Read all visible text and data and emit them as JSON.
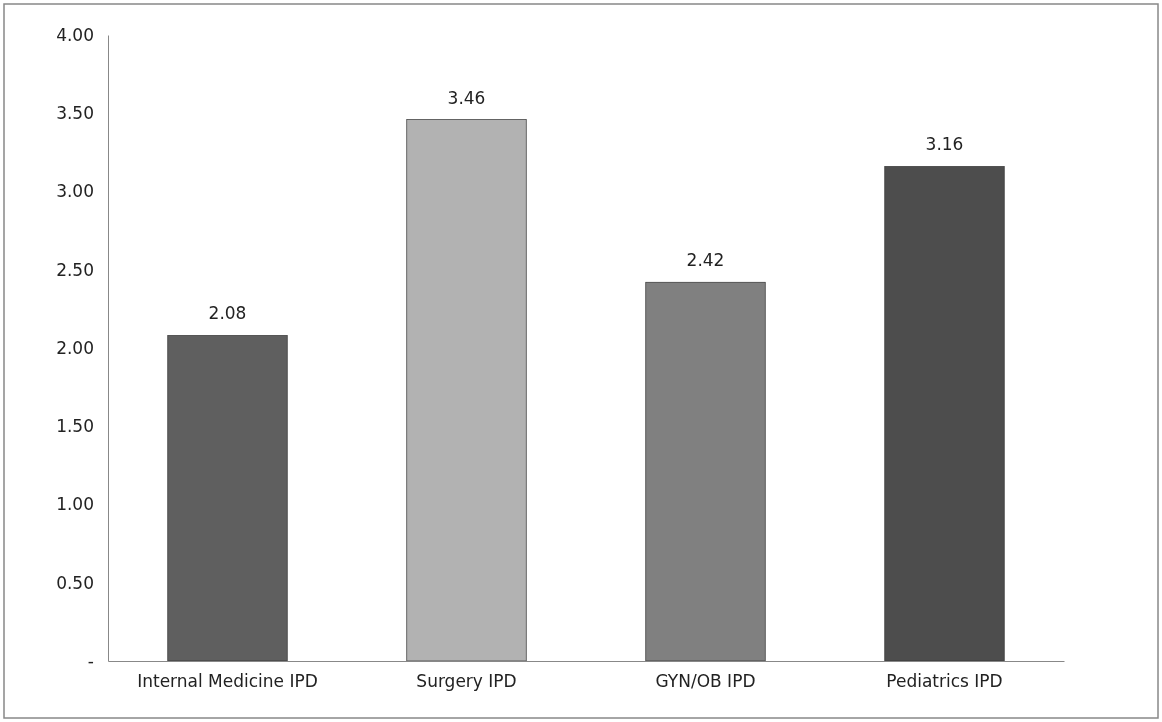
{
  "chart_data": {
    "type": "bar",
    "categories": [
      "Internal Medicine IPD",
      "Surgery IPD",
      "GYN/OB IPD",
      "Pediatrics IPD"
    ],
    "values": [
      2.08,
      3.46,
      2.42,
      3.16
    ],
    "colors": [
      "#5f5f5f",
      "#b2b2b2",
      "#808080",
      "#4d4d4d"
    ],
    "ylim": [
      0,
      4
    ],
    "yticks": [
      {
        "value": 0,
        "label": "-"
      },
      {
        "value": 0.5,
        "label": "0.50"
      },
      {
        "value": 1,
        "label": "1.00"
      },
      {
        "value": 1.5,
        "label": "1.50"
      },
      {
        "value": 2,
        "label": "2.00"
      },
      {
        "value": 2.5,
        "label": "2.50"
      },
      {
        "value": 3,
        "label": "3.00"
      },
      {
        "value": 3.5,
        "label": "3.50"
      },
      {
        "value": 4,
        "label": "4.00"
      }
    ],
    "data_labels": true
  }
}
